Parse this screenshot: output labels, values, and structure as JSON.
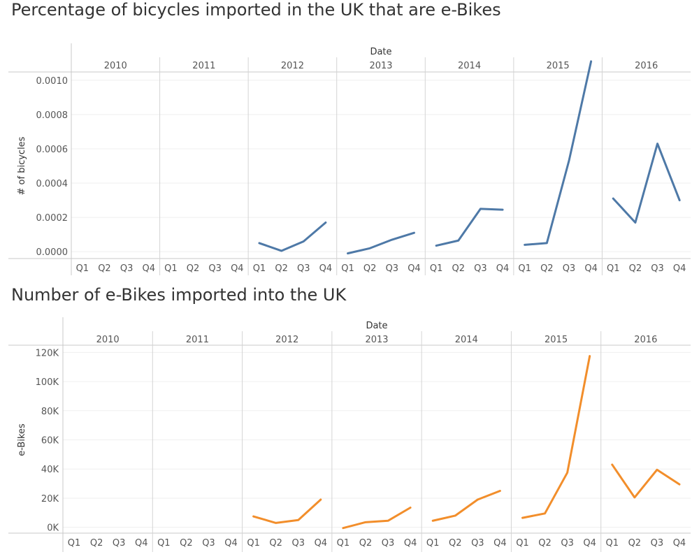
{
  "chart_data": [
    {
      "type": "line",
      "title": "Percentage of bicycles imported in the UK that are e-Bikes",
      "column_header": "Date",
      "ylabel": "# of bicycles",
      "ylim": [
        -4e-05,
        0.00104
      ],
      "yticks": [
        0.0,
        0.0002,
        0.0004,
        0.0006,
        0.0008,
        0.001
      ],
      "ytick_labels": [
        "0.0000",
        "0.0002",
        "0.0004",
        "0.0006",
        "0.0008",
        "0.0010"
      ],
      "years": [
        "2010",
        "2011",
        "2012",
        "2013",
        "2014",
        "2015",
        "2016"
      ],
      "quarters": [
        "Q1",
        "Q2",
        "Q3",
        "Q4"
      ],
      "grid": true,
      "color": "#4e79a7",
      "series": [
        {
          "values": [
            [
              null,
              null,
              null,
              null
            ],
            [
              null,
              null,
              null,
              null
            ],
            [
              5e-05,
              5e-06,
              6e-05,
              0.00017
            ],
            [
              -1e-05,
              2e-05,
              7e-05,
              0.00011
            ],
            [
              3.5e-05,
              6.5e-05,
              0.00025,
              0.000245
            ],
            [
              4e-05,
              5e-05,
              0.00053,
              0.00111
            ],
            [
              0.00031,
              0.00017,
              0.00063,
              0.0003
            ]
          ]
        }
      ]
    },
    {
      "type": "line",
      "title": "Number of e-Bikes imported into the UK",
      "column_header": "Date",
      "ylabel": "e-Bikes",
      "ylim": [
        -4000,
        124000
      ],
      "yticks": [
        0,
        20000,
        40000,
        60000,
        80000,
        100000,
        120000
      ],
      "ytick_labels": [
        "0K",
        "20K",
        "40K",
        "60K",
        "80K",
        "100K",
        "120K"
      ],
      "years": [
        "2010",
        "2011",
        "2012",
        "2013",
        "2014",
        "2015",
        "2016"
      ],
      "quarters": [
        "Q1",
        "Q2",
        "Q3",
        "Q4"
      ],
      "grid": true,
      "color": "#f28e2b",
      "series": [
        {
          "values": [
            [
              null,
              null,
              null,
              null
            ],
            [
              null,
              null,
              null,
              null
            ],
            [
              7500,
              3000,
              5000,
              19000
            ],
            [
              -500,
              3500,
              4500,
              13500
            ],
            [
              4500,
              8000,
              19000,
              25000
            ],
            [
              6500,
              9500,
              37500,
              117500
            ],
            [
              43000,
              20500,
              39500,
              29500
            ]
          ]
        }
      ]
    }
  ]
}
